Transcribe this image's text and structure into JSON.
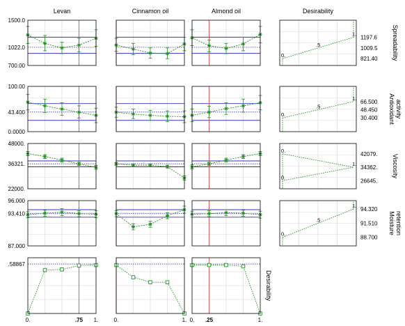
{
  "chart_data": {
    "type": "profiler",
    "factors": [
      "Levan",
      "Cinnamon oil",
      "Almond oil"
    ],
    "desirability_column_title": "Desirability",
    "x_positions": [
      0.0,
      0.25,
      0.5,
      0.75,
      1.0
    ],
    "x_tick_labels": {
      "Levan": [
        {
          "x": 0.0,
          "label": "0.",
          "bold": false
        },
        {
          "x": 0.75,
          "label": ".75",
          "bold": true
        },
        {
          "x": 1.0,
          "label": "1.",
          "bold": false
        }
      ],
      "Cinnamon oil": [
        {
          "x": 0.0,
          "label": "0.",
          "bold": false
        },
        {
          "x": 1.0,
          "label": "1.",
          "bold": false
        }
      ],
      "Almond oil": [
        {
          "x": 0.0,
          "label": "0.",
          "bold": false
        },
        {
          "x": 0.25,
          "label": ".25",
          "bold": true
        },
        {
          "x": 1.0,
          "label": "1.",
          "bold": false
        }
      ]
    },
    "current_settings": {
      "Levan": 0.75,
      "Cinnamon oil": 0.0,
      "Almond oil": 0.25
    },
    "responses": [
      {
        "name": "Spreadability",
        "ylim": [
          700.0,
          1500.0
        ],
        "y_tick_labels": [
          "1500.0",
          "1022.0",
          "700.00"
        ],
        "y_tick_values": [
          1500.0,
          1022.0,
          700.0
        ],
        "predicted": 1022.0,
        "ci_band": [
          915.0,
          1200.0
        ],
        "profiles": {
          "Levan": {
            "mean": [
              1240,
              1090,
              1010,
              1060,
              1180
            ],
            "lower": [
              1090,
              960,
              910,
              940,
              1040
            ],
            "upper": [
              1390,
              1230,
              1110,
              1180,
              1330
            ]
          },
          "Cinnamon oil": {
            "mean": [
              1060,
              990,
              920,
              910,
              1080
            ],
            "lower": [
              950,
              890,
              830,
              820,
              960
            ],
            "upper": [
              1180,
              1090,
              1010,
              1010,
              1200
            ]
          },
          "Almond oil": {
            "mean": [
              1190,
              1050,
              1000,
              1080,
              1250
            ],
            "lower": [
              1050,
              940,
              910,
              960,
              1100
            ],
            "upper": [
              1330,
              1150,
              1090,
              1200,
              1390
            ]
          }
        },
        "desirability": {
          "levels": [
            "0.",
            ".5",
            "1."
          ],
          "curve_y": [
            821.4,
            1009.5,
            1197.6
          ],
          "curve_d": [
            0.0,
            0.5,
            1.0
          ],
          "y_tick_labels": [
            "1197.6",
            "1009.5",
            "821.40"
          ],
          "y_tick_values": [
            1197.6,
            1009.5,
            821.4
          ],
          "ylim": [
            700.0,
            1500.0
          ]
        }
      },
      {
        "name": "Antioxidant\nactivity",
        "ylim": [
          0.0,
          100.0
        ],
        "y_tick_labels": [
          "100.00",
          "43.400",
          "0.0000"
        ],
        "y_tick_values": [
          100.0,
          43.4,
          0.0
        ],
        "predicted": 43.4,
        "ci_band": [
          25.0,
          62.0
        ],
        "profiles": {
          "Levan": {
            "mean": [
              65,
              57,
              50,
              43,
              36
            ],
            "lower": [
              48,
              42,
              36,
              30,
              20
            ],
            "upper": [
              82,
              72,
              64,
              57,
              52
            ]
          },
          "Cinnamon oil": {
            "mean": [
              43,
              39,
              36,
              34,
              33
            ],
            "lower": [
              32,
              29,
              25,
              22,
              20
            ],
            "upper": [
              54,
              50,
              47,
              46,
              46
            ]
          },
          "Almond oil": {
            "mean": [
              36,
              43,
              51,
              57,
              64
            ],
            "lower": [
              22,
              31,
              38,
              43,
              48
            ],
            "upper": [
              50,
              56,
              64,
              72,
              80
            ]
          }
        },
        "desirability": {
          "levels": [
            "0.",
            ".5",
            "1."
          ],
          "curve_y": [
            30.4,
            48.45,
            66.5
          ],
          "curve_d": [
            0.0,
            0.5,
            1.0
          ],
          "y_tick_labels": [
            "66.500",
            "48.450",
            "30.400"
          ],
          "y_tick_values": [
            66.5,
            48.45,
            30.4
          ],
          "ylim": [
            0.0,
            100.0
          ]
        }
      },
      {
        "name": "Viscosity",
        "ylim": [
          22000.0,
          48000.0
        ],
        "y_tick_labels": [
          "48000.",
          "36321.",
          "22000."
        ],
        "y_tick_values": [
          48000.0,
          36321.0,
          22000.0
        ],
        "predicted": 36321.0,
        "ci_band": [
          34600.0,
          38000.0
        ],
        "profiles": {
          "Levan": {
            "mean": [
              42200,
              40500,
              38500,
              36300,
              34300
            ],
            "lower": [
              41000,
              39400,
              37400,
              35400,
              33200
            ],
            "upper": [
              43400,
              41600,
              39600,
              37200,
              35400
            ]
          },
          "Cinnamon oil": {
            "mean": [
              36321,
              35500,
              35500,
              34700,
              28200
            ],
            "lower": [
              35500,
              34700,
              34700,
              33900,
              26900
            ],
            "upper": [
              37100,
              36300,
              36300,
              35500,
              29500
            ]
          },
          "Almond oil": {
            "mean": [
              34600,
              36300,
              38500,
              40500,
              42200
            ],
            "lower": [
              33400,
              35400,
              37400,
              39400,
              41000
            ],
            "upper": [
              35800,
              37200,
              39600,
              41600,
              43400
            ]
          }
        },
        "desirability": {
          "levels": [
            "0.",
            "1.",
            "0."
          ],
          "curve_y": [
            42079.0,
            34362.0,
            26645.0
          ],
          "curve_d": [
            0.0,
            1.0,
            0.0
          ],
          "y_tick_labels": [
            "42079.",
            "34362.",
            "26645."
          ],
          "y_tick_values": [
            42079.0,
            34362.0,
            26645.0
          ],
          "ylim": [
            22000.0,
            48000.0
          ]
        }
      },
      {
        "name": "Moisture\nretention",
        "ylim": [
          87.0,
          96.0
        ],
        "y_tick_labels": [
          "96.000",
          "93.410",
          "87.000"
        ],
        "y_tick_values": [
          96.0,
          93.41,
          87.0
        ],
        "predicted": 93.41,
        "ci_band": [
          92.7,
          94.2
        ],
        "profiles": {
          "Levan": {
            "mean": [
              93.2,
              93.5,
              93.7,
              93.41,
              93.3
            ],
            "lower": [
              92.6,
              92.9,
              93.0,
              92.8,
              92.6
            ],
            "upper": [
              93.8,
              94.1,
              94.4,
              94.0,
              94.0
            ]
          },
          "Cinnamon oil": {
            "mean": [
              93.41,
              90.8,
              91.3,
              93.0,
              94.2
            ],
            "lower": [
              92.8,
              90.2,
              90.7,
              92.4,
              93.5
            ],
            "upper": [
              94.0,
              91.4,
              91.9,
              93.6,
              94.9
            ]
          },
          "Almond oil": {
            "mean": [
              93.3,
              93.41,
              93.6,
              93.5,
              93.2
            ],
            "lower": [
              92.7,
              92.8,
              93.0,
              92.9,
              92.5
            ],
            "upper": [
              93.9,
              94.0,
              94.2,
              94.1,
              93.9
            ]
          }
        },
        "desirability": {
          "levels": [
            "0.",
            ".5",
            "1."
          ],
          "curve_y": [
            88.7,
            91.51,
            94.32
          ],
          "curve_d": [
            0.0,
            0.5,
            1.0
          ],
          "y_tick_labels": [
            "94.320",
            "91.510",
            "88.700"
          ],
          "y_tick_values": [
            94.32,
            91.51,
            88.7
          ],
          "ylim": [
            87.0,
            96.0
          ]
        }
      }
    ],
    "overall_desirability": {
      "row_label": "Desirability",
      "ylim": [
        0.5,
        0.6
      ],
      "y_tick_labels": [
        ".58867"
      ],
      "y_tick_values": [
        0.58867
      ],
      "current": 0.58867,
      "profiles": {
        "Levan": [
          0.5,
          0.578,
          0.579,
          0.586,
          0.5868
        ],
        "Cinnamon oil": [
          0.5868,
          0.565,
          0.556,
          0.556,
          0.5
        ],
        "Almond oil": [
          0.5868,
          0.5868,
          0.5868,
          0.5845,
          0.5
        ]
      }
    },
    "colors": {
      "profile": "#1f8f1f",
      "ci_band": "#3333bb",
      "current_setting": "#e04a4a",
      "grid": "#d6d6d6",
      "frame": "#000000"
    }
  }
}
